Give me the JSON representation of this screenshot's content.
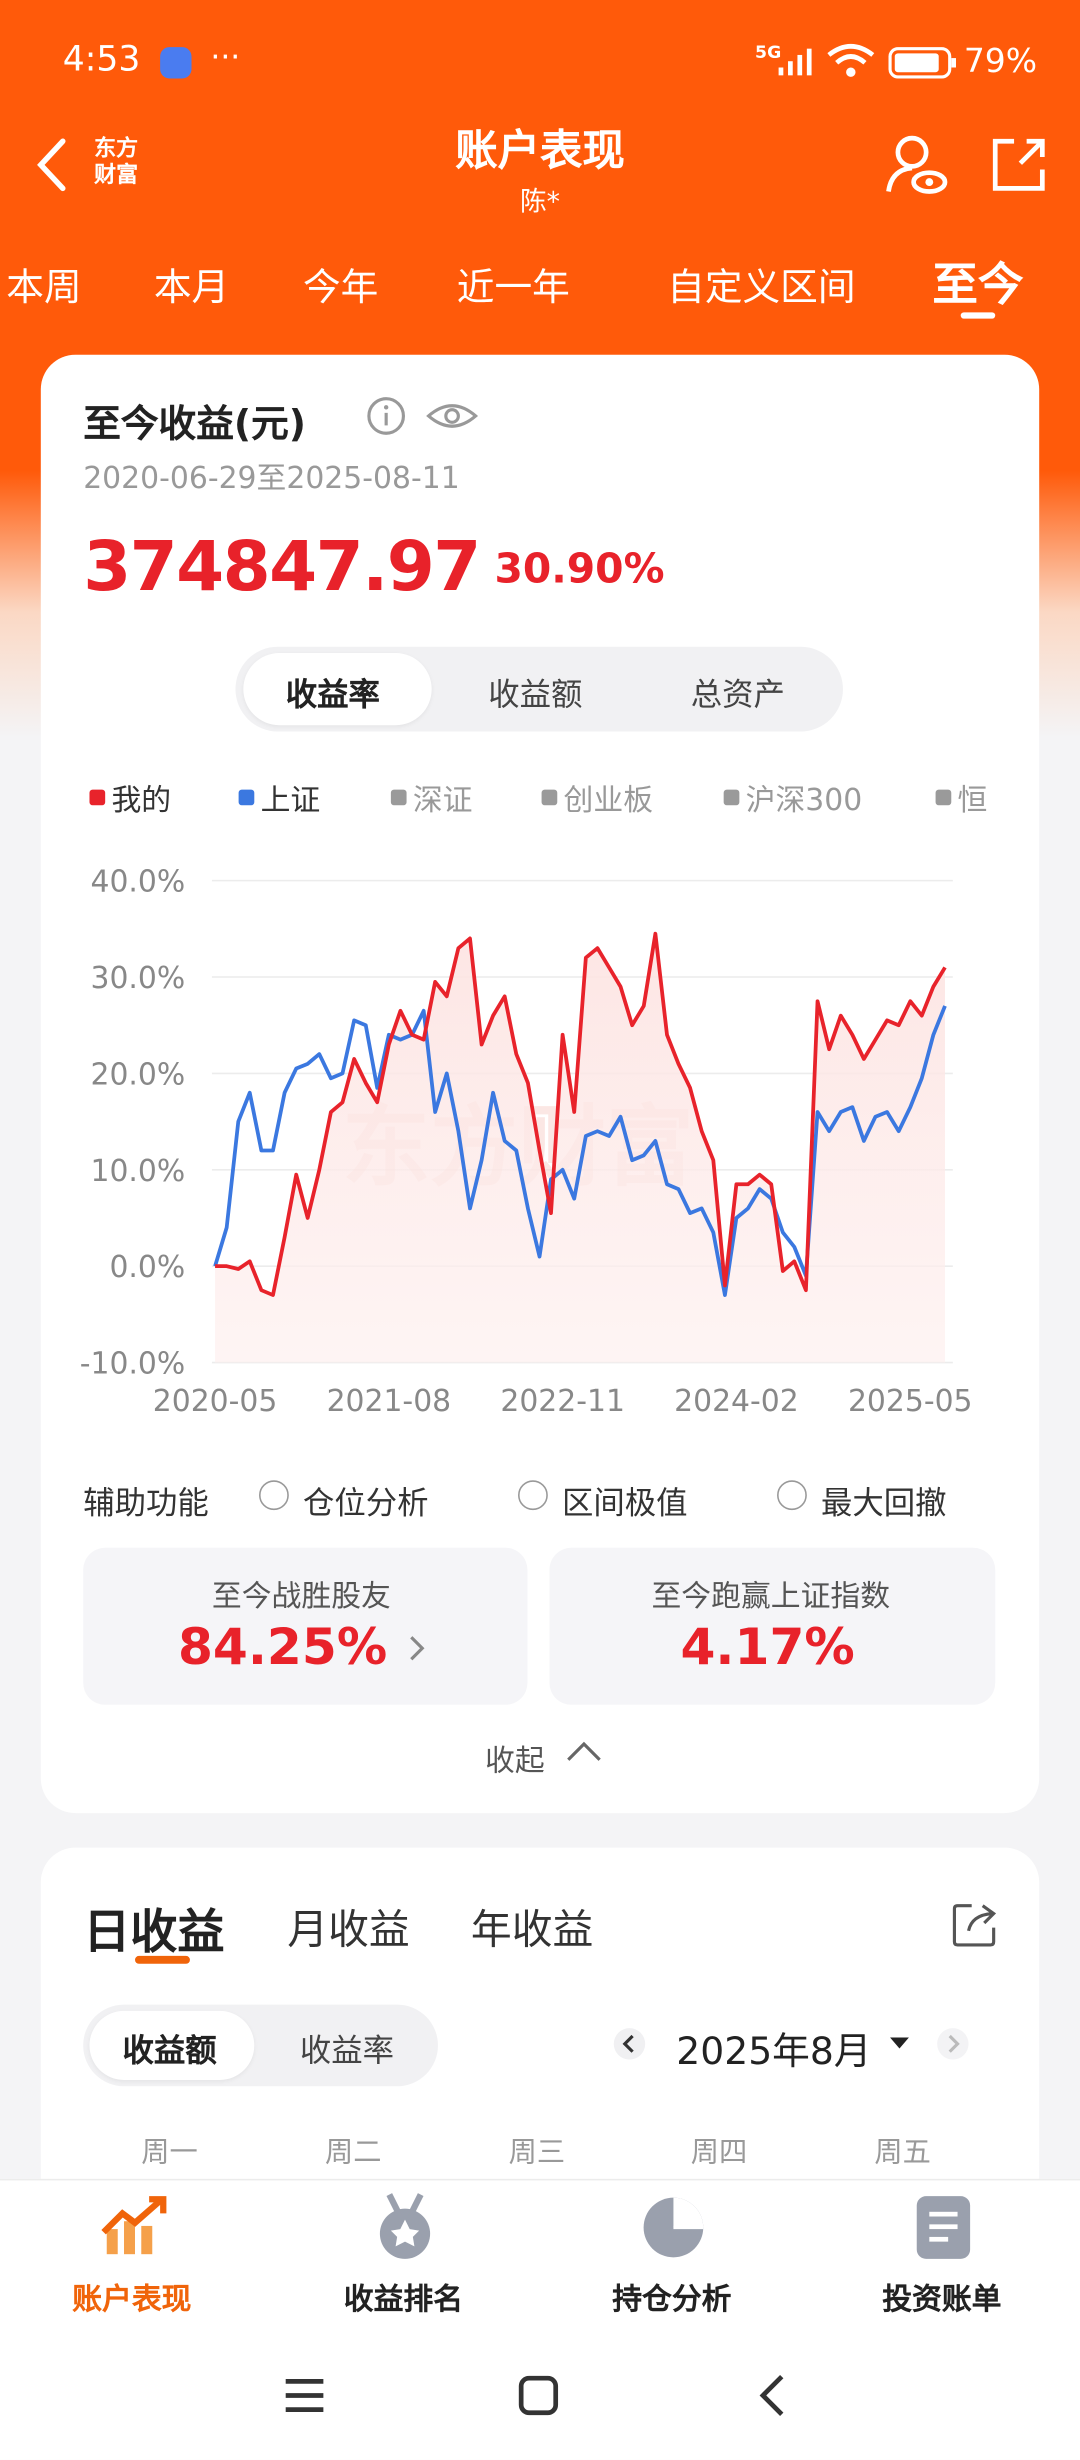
{
  "status_bar": {
    "time": "4:53",
    "network": "5G",
    "battery": "79%"
  },
  "header": {
    "logo": [
      "东方",
      "财富"
    ],
    "title": "账户表现",
    "subtitle": "陈*"
  },
  "period_tabs": {
    "items": [
      "本周",
      "本月",
      "今年",
      "近一年",
      "自定义区间",
      "至今"
    ],
    "active": 5
  },
  "summary": {
    "title": "至今收益(元)",
    "date_range": "2020-06-29至2025-08-11",
    "amount": "374847.97",
    "rate": "30.90%"
  },
  "chart_toggle": {
    "items": [
      "收益率",
      "收益额",
      "总资产"
    ],
    "active": 0
  },
  "chart_data": {
    "type": "line",
    "watermark": "东方财富",
    "categories": [
      "2020-05",
      null,
      null,
      null,
      null,
      null,
      null,
      null,
      null,
      null,
      null,
      null,
      null,
      null,
      null,
      "2021-08",
      null,
      null,
      null,
      null,
      null,
      null,
      null,
      null,
      null,
      null,
      null,
      null,
      null,
      null,
      "2022-11",
      null,
      null,
      null,
      null,
      null,
      null,
      null,
      null,
      null,
      null,
      null,
      null,
      null,
      null,
      "2024-02",
      null,
      null,
      null,
      null,
      null,
      null,
      null,
      null,
      null,
      null,
      null,
      null,
      null,
      null,
      "2025-05",
      null,
      null,
      null
    ],
    "series": [
      {
        "name": "我的",
        "color": "#e8232b",
        "area": true,
        "values": [
          0,
          0,
          -0.3,
          0.5,
          -2.5,
          -3,
          3,
          9.5,
          5,
          10,
          16,
          17,
          21.5,
          19,
          17,
          23,
          26.5,
          24,
          23.5,
          29.5,
          28,
          33,
          34,
          23,
          26,
          28,
          22,
          19,
          12,
          5.5,
          24,
          16,
          32,
          33,
          31,
          29,
          25,
          27,
          34.5,
          24,
          21,
          18.5,
          14,
          11,
          -2,
          8.5,
          8.5,
          9.5,
          8.5,
          -0.5,
          0.5,
          -2.5,
          27.5,
          22.5,
          26,
          24,
          21.5,
          23.5,
          25.5,
          25,
          27.5,
          26,
          29,
          31
        ]
      },
      {
        "name": "上证",
        "color": "#3b78e0",
        "area": false,
        "values": [
          0,
          4,
          15,
          18,
          12,
          12,
          18,
          20.5,
          21,
          22,
          19.5,
          20,
          25.5,
          25,
          18.5,
          24,
          23.5,
          24,
          26.5,
          16,
          20,
          14,
          6,
          11,
          18,
          13,
          12,
          6,
          1,
          9,
          10,
          7,
          13.5,
          14,
          13.5,
          15.5,
          11,
          11.5,
          13,
          8.5,
          8,
          5.5,
          6,
          3.5,
          -3,
          5,
          6,
          8,
          7,
          3.5,
          2,
          -1,
          16,
          14,
          16,
          16.5,
          13,
          15.5,
          16,
          14,
          16.5,
          19.5,
          24,
          27
        ]
      }
    ],
    "inactive_legend": [
      {
        "name": "深证",
        "color": "#9a9a9a"
      },
      {
        "name": "创业板",
        "color": "#9a9a9a"
      },
      {
        "name": "沪深300",
        "color": "#9a9a9a"
      },
      {
        "name": "恒",
        "color": "#9a9a9a"
      }
    ],
    "ylim": [
      -10,
      40
    ],
    "yticks": [
      {
        "value": -10,
        "label": "-10.0%"
      },
      {
        "value": 0,
        "label": "0.0%"
      },
      {
        "value": 10,
        "label": "10.0%"
      },
      {
        "value": 20,
        "label": "20.0%"
      },
      {
        "value": 30,
        "label": "30.0%"
      },
      {
        "value": 40,
        "label": "40.0%"
      }
    ],
    "grid": true
  },
  "aux": {
    "label": "辅助功能",
    "options": [
      "仓位分析",
      "区间极值",
      "最大回撤"
    ]
  },
  "stats": [
    {
      "label": "至今战胜股友",
      "value": "84.25%"
    },
    {
      "label": "至今跑赢上证指数",
      "value": "4.17%"
    }
  ],
  "collapse": "收起",
  "daily": {
    "tabs": [
      "日收益",
      "月收益",
      "年收益"
    ],
    "toggle": [
      "收益额",
      "收益率"
    ],
    "month": "2025年8月",
    "weekdays": [
      "周一",
      "周二",
      "周三",
      "周四",
      "周五"
    ]
  },
  "bottom_nav": {
    "items": [
      "账户表现",
      "收益排名",
      "持仓分析",
      "投资账单"
    ],
    "active": 0
  }
}
